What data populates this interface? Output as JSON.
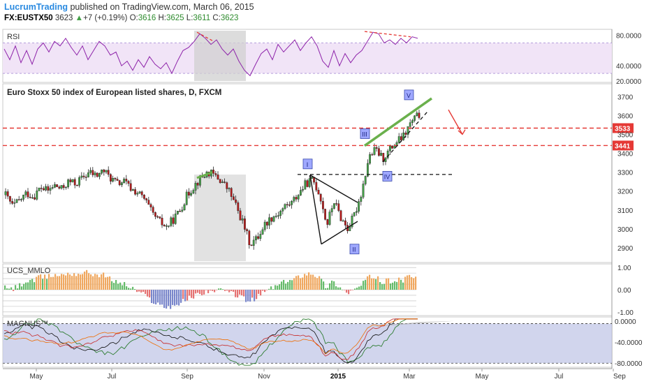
{
  "header": {
    "author": "LucrumTrading",
    "published": "published on TradingView.com, March 06, 2015",
    "symbol": "FX:EUSTX50",
    "last": "3623",
    "change": "+7 (+0.19%)",
    "o_label": "O:",
    "o": "3616",
    "h_label": "H:",
    "h": "3625",
    "l_label": "L:",
    "l": "3611",
    "c_label": "C:",
    "c": "3623"
  },
  "colors": {
    "up": "#43a047",
    "down": "#b71c1c",
    "rsi": "#8e24aa",
    "rsi_band": "#f1e4f7",
    "level": "#e53935",
    "wedge": "#6ab04c",
    "mmlo_up": "#f0a860",
    "mmlo_green": "#66bb6a",
    "mmlo_neg": "#e57373",
    "mmlo_blue": "#7986cb",
    "magnus_band": "#c5cae9"
  },
  "chart_data": [
    {
      "type": "line",
      "name": "rsi-pane",
      "title": "RSI",
      "y_ticks": [
        "80.0000",
        "40.0000",
        "20.0000"
      ],
      "ylim": [
        20,
        86
      ],
      "band": [
        30,
        70
      ],
      "x": [
        0,
        8,
        16,
        24,
        32,
        40,
        48,
        56,
        64,
        72,
        80,
        88,
        96,
        104,
        112,
        120,
        128,
        136,
        144,
        152,
        160,
        168,
        176,
        184,
        192,
        200,
        208,
        216,
        224,
        232,
        240,
        248,
        256,
        264,
        272,
        280,
        288,
        296,
        304,
        312,
        320,
        328,
        336,
        344,
        352,
        360,
        368,
        376,
        384,
        392,
        400,
        408,
        416,
        424,
        432,
        440,
        448,
        456,
        464,
        472,
        480,
        488,
        496,
        504,
        512,
        520,
        528,
        536,
        544,
        552,
        560,
        568,
        576,
        584,
        592
      ],
      "values": [
        62,
        48,
        66,
        44,
        60,
        42,
        62,
        70,
        58,
        72,
        66,
        76,
        64,
        54,
        66,
        48,
        60,
        72,
        66,
        54,
        58,
        40,
        46,
        34,
        48,
        38,
        52,
        42,
        36,
        44,
        30,
        46,
        60,
        64,
        72,
        82,
        76,
        68,
        74,
        62,
        54,
        62,
        46,
        34,
        27,
        42,
        56,
        62,
        48,
        68,
        58,
        66,
        74,
        60,
        70,
        78,
        66,
        46,
        38,
        60,
        40,
        56,
        44,
        54,
        60,
        72,
        84,
        82,
        70,
        74,
        68,
        76,
        70,
        78,
        76
      ],
      "annotations": [
        "dashed divergence lines",
        "shaded range Sep-Oct"
      ]
    },
    {
      "type": "candlestick",
      "name": "price-pane",
      "title": "Euro Stoxx 50 index of European listed shares, D, FXCM",
      "y_ticks": [
        "3700",
        "3600",
        "3500",
        "3400",
        "3300",
        "3200",
        "3100",
        "3000",
        "2900"
      ],
      "ylim": [
        2830,
        3760
      ],
      "price_labels": [
        "3533",
        "3441"
      ],
      "levels": [
        3533,
        3441
      ],
      "waves": [
        "I",
        "II",
        "III",
        "IV",
        "V"
      ],
      "x_ticks": [
        "May",
        "Jul",
        "Sep",
        "Nov",
        "2015",
        "Mar",
        "May",
        "Jul",
        "Sep"
      ],
      "close_path": [
        [
          0,
          3180
        ],
        [
          10,
          3120
        ],
        [
          20,
          3150
        ],
        [
          30,
          3190
        ],
        [
          40,
          3170
        ],
        [
          50,
          3220
        ],
        [
          60,
          3200
        ],
        [
          70,
          3230
        ],
        [
          80,
          3210
        ],
        [
          90,
          3250
        ],
        [
          100,
          3240
        ],
        [
          110,
          3270
        ],
        [
          120,
          3300
        ],
        [
          130,
          3280
        ],
        [
          140,
          3310
        ],
        [
          150,
          3270
        ],
        [
          160,
          3240
        ],
        [
          170,
          3250
        ],
        [
          180,
          3210
        ],
        [
          190,
          3190
        ],
        [
          200,
          3150
        ],
        [
          210,
          3080
        ],
        [
          220,
          3040
        ],
        [
          230,
          3010
        ],
        [
          240,
          3050
        ],
        [
          250,
          3100
        ],
        [
          260,
          3180
        ],
        [
          270,
          3230
        ],
        [
          280,
          3270
        ],
        [
          290,
          3300
        ],
        [
          300,
          3280
        ],
        [
          310,
          3250
        ],
        [
          320,
          3200
        ],
        [
          330,
          3120
        ],
        [
          340,
          3030
        ],
        [
          350,
          2920
        ],
        [
          360,
          2950
        ],
        [
          370,
          3020
        ],
        [
          380,
          3060
        ],
        [
          390,
          3080
        ],
        [
          400,
          3120
        ],
        [
          410,
          3140
        ],
        [
          420,
          3190
        ],
        [
          430,
          3240
        ],
        [
          440,
          3260
        ],
        [
          450,
          3180
        ],
        [
          460,
          3020
        ],
        [
          470,
          3150
        ],
        [
          480,
          3060
        ],
        [
          490,
          3000
        ],
        [
          500,
          3080
        ],
        [
          510,
          3200
        ],
        [
          520,
          3380
        ],
        [
          530,
          3420
        ],
        [
          540,
          3370
        ],
        [
          550,
          3420
        ],
        [
          560,
          3460
        ],
        [
          570,
          3490
        ],
        [
          580,
          3560
        ],
        [
          590,
          3600
        ],
        [
          600,
          3623
        ]
      ]
    },
    {
      "type": "bar",
      "name": "ucs-mmlo-pane",
      "title": "UCS_MMLO",
      "y_ticks": [
        "1.00",
        "0.00",
        "-1.00"
      ],
      "ylim": [
        -1.1,
        1.1
      ]
    },
    {
      "type": "line",
      "name": "magnus-pane",
      "title": "MAGNUS™",
      "y_ticks": [
        "0.0000",
        "-40.0000",
        "-80.0000"
      ],
      "ylim": [
        -85,
        5
      ]
    }
  ]
}
